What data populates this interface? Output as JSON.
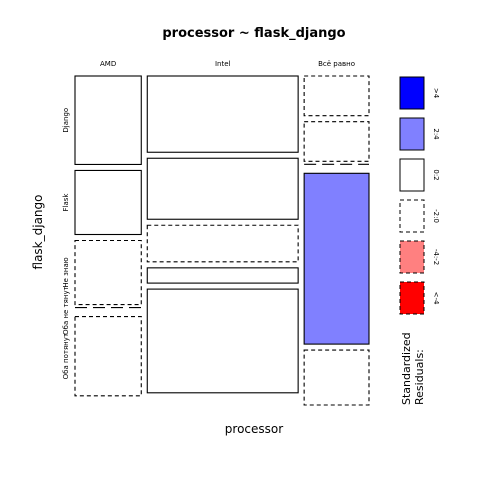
{
  "chart_data": {
    "type": "mosaic",
    "title": "processor ~ flask_django",
    "xlabel": "processor",
    "ylabel": "flask_django",
    "x_categories": [
      "AMD",
      "Intel",
      "Всё равно"
    ],
    "x_proportions": [
      0.235,
      0.535,
      0.23
    ],
    "y_categories": [
      "Django",
      "Flask",
      "Не знаю",
      "Оба не тянут",
      "Оба потянут"
    ],
    "cells": [
      {
        "x": "AMD",
        "y": "Django",
        "proportion": 0.29,
        "residual_band": "0:2"
      },
      {
        "x": "AMD",
        "y": "Flask",
        "proportion": 0.21,
        "residual_band": "0:2"
      },
      {
        "x": "AMD",
        "y": "Не знаю",
        "proportion": 0.21,
        "residual_band": "-2:0"
      },
      {
        "x": "AMD",
        "y": "Оба не тянут",
        "proportion": 0.0,
        "residual_band": "-2:0"
      },
      {
        "x": "AMD",
        "y": "Оба потянут",
        "proportion": 0.26,
        "residual_band": "-2:0"
      },
      {
        "x": "Intel",
        "y": "Django",
        "proportion": 0.25,
        "residual_band": "0:2"
      },
      {
        "x": "Intel",
        "y": "Flask",
        "proportion": 0.2,
        "residual_band": "0:2"
      },
      {
        "x": "Intel",
        "y": "Не знаю",
        "proportion": 0.12,
        "residual_band": "-2:0"
      },
      {
        "x": "Intel",
        "y": "Оба не тянут",
        "proportion": 0.05,
        "residual_band": "0:2"
      },
      {
        "x": "Intel",
        "y": "Оба потянут",
        "proportion": 0.34,
        "residual_band": "0:2"
      },
      {
        "x": "Всё равно",
        "y": "Django",
        "proportion": 0.13,
        "residual_band": "-2:0"
      },
      {
        "x": "Всё равно",
        "y": "Flask",
        "proportion": 0.13,
        "residual_band": "-2:0"
      },
      {
        "x": "Всё равно",
        "y": "Не знаю",
        "proportion": 0.0,
        "residual_band": "-2:0"
      },
      {
        "x": "Всё равно",
        "y": "Оба не тянут",
        "proportion": 0.56,
        "residual_band": "2:4"
      },
      {
        "x": "Всё равно",
        "y": "Оба потянут",
        "proportion": 0.18,
        "residual_band": "-2:0"
      }
    ],
    "legend": {
      "title_lines": [
        "Standardized",
        "Residuals:"
      ],
      "bins": [
        {
          "label": ">4",
          "fill": "#0000ff",
          "dashed": false
        },
        {
          "label": "2:4",
          "fill": "#8080ff",
          "dashed": false
        },
        {
          "label": "0:2",
          "fill": "#ffffff",
          "dashed": false
        },
        {
          "label": "-2:0",
          "fill": "#ffffff",
          "dashed": true
        },
        {
          "label": "-4:-2",
          "fill": "#ff8080",
          "dashed": true
        },
        {
          "label": "<-4",
          "fill": "#ff0000",
          "dashed": true
        }
      ],
      "placement": "right"
    }
  }
}
